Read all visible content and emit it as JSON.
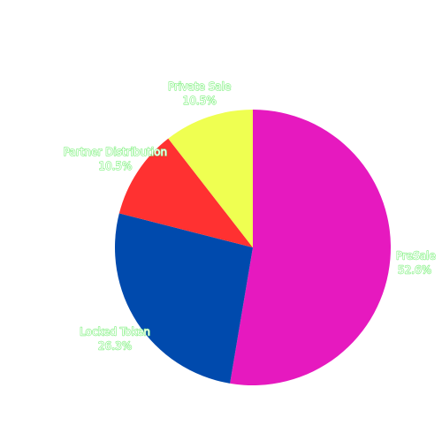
{
  "chart_data": {
    "type": "pie",
    "title": "",
    "start_angle_deg": 0,
    "direction": "clockwise",
    "slices": [
      {
        "label": "PreSale",
        "value": 52.6,
        "display": "52.6%",
        "color": "#e619bf"
      },
      {
        "label": "Locked Token",
        "value": 26.3,
        "display": "26.3%",
        "color": "#004aad"
      },
      {
        "label": "Partner Distribution",
        "value": 10.5,
        "display": "10.5%",
        "color": "#ff3131"
      },
      {
        "label": "Private Sale",
        "value": 10.5,
        "display": "10.5%",
        "color": "#efff51"
      }
    ],
    "label_color": "#ffffff",
    "label_outline_color": "#8df28d",
    "legend": "none"
  }
}
